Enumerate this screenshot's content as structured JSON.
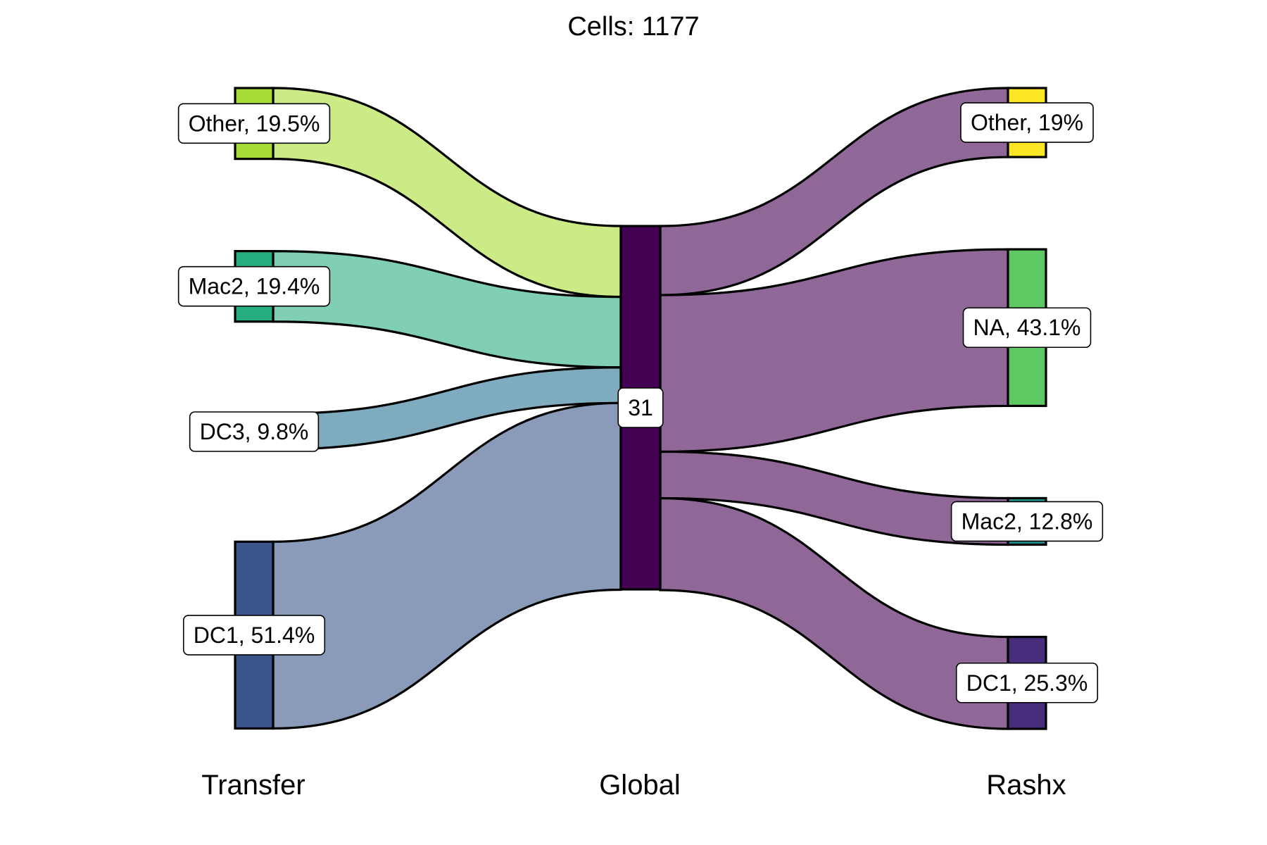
{
  "chart_data": {
    "type": "sankey",
    "title": "Cells:  1177",
    "total": 1177,
    "axes": [
      "Transfer",
      "Global",
      "Rashx"
    ],
    "left_nodes": [
      {
        "name": "Other",
        "percent": 19.5,
        "label": "Other, 19.5%",
        "color": "#A6DD38",
        "flow_color": "#CCEA85"
      },
      {
        "name": "Mac2",
        "percent": 19.4,
        "label": "Mac2, 19.4%",
        "color": "#27AD82",
        "flow_color": "#80CFB5"
      },
      {
        "name": "DC3",
        "percent": 9.8,
        "label": "DC3, 9.8%",
        "color": "#2C7D9C",
        "flow_color": "#7FABBE"
      },
      {
        "name": "DC1",
        "percent": 51.4,
        "label": "DC1, 51.4%",
        "color": "#3B548A",
        "flow_color": "#8A9AB9"
      }
    ],
    "middle_node": {
      "name": "31",
      "label": "31",
      "color": "#440154"
    },
    "right_nodes": [
      {
        "name": "Other",
        "percent": 19,
        "label": "Other, 19%",
        "color": "#FDE725"
      },
      {
        "name": "NA",
        "percent": 43.1,
        "label": "NA, 43.1%",
        "color": "#5EC962"
      },
      {
        "name": "Mac2",
        "percent": 12.8,
        "label": "Mac2, 12.8%",
        "color": "#21918C"
      },
      {
        "name": "DC1",
        "percent": 25.3,
        "label": "DC1, 25.3%",
        "color": "#472D7B"
      }
    ],
    "right_flow_color": "#8F6898"
  }
}
